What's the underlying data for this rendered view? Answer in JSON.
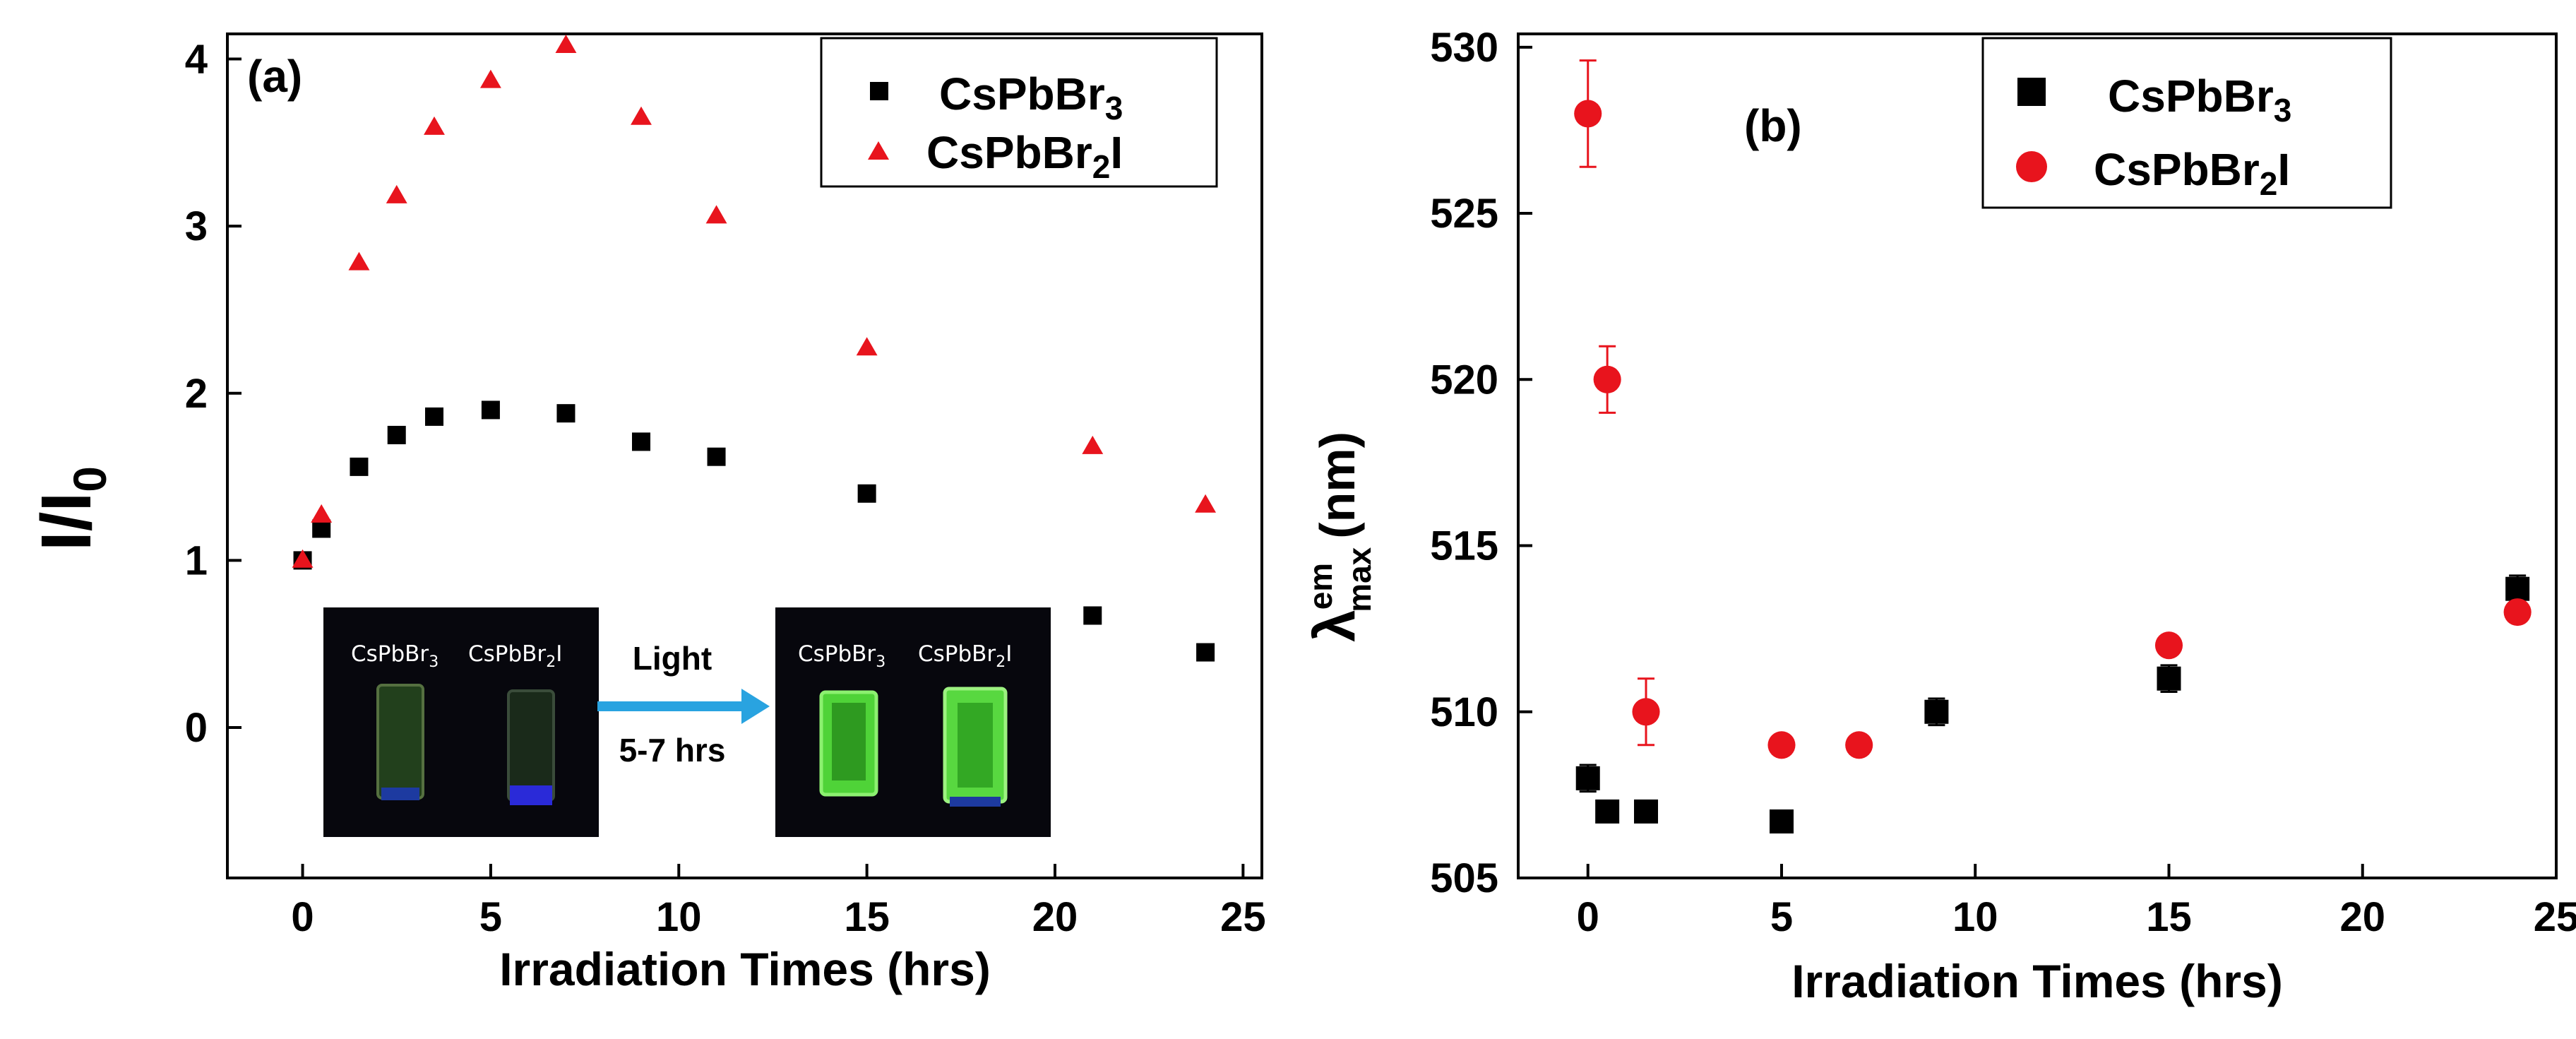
{
  "chart_data": [
    {
      "type": "scatter",
      "panel_label": "(a)",
      "xlabel": "Irradiation Times (hrs)",
      "ylabel": "I/I0",
      "ylabel_main": "I/I",
      "ylabel_sub": "0",
      "xlim": [
        -2,
        25.5
      ],
      "ylim": [
        -0.9,
        4.15
      ],
      "xticks": [
        0,
        5,
        10,
        15,
        20,
        25
      ],
      "yticks": [
        0,
        1,
        2,
        3,
        4
      ],
      "grid": false,
      "legend_position": "top-right",
      "series": [
        {
          "name": "CsPbBr3",
          "label_main": "CsPbBr",
          "label_sub": "3",
          "marker": "square",
          "color": "#000000",
          "x": [
            0,
            0.5,
            1.5,
            2.5,
            3.5,
            5,
            7,
            9,
            11,
            15,
            21,
            24
          ],
          "y": [
            1.0,
            1.19,
            1.56,
            1.75,
            1.86,
            1.9,
            1.88,
            1.71,
            1.62,
            1.4,
            0.67,
            0.45
          ]
        },
        {
          "name": "CsPbBr2I",
          "label_main": "CsPbBr",
          "label_sub": "2",
          "label_tail": "I",
          "marker": "triangle",
          "color": "#e8141d",
          "x": [
            0,
            0.5,
            1.5,
            2.5,
            3.5,
            5,
            7,
            9,
            11,
            15,
            21,
            24
          ],
          "y": [
            1.0,
            1.27,
            2.78,
            3.18,
            3.59,
            3.87,
            4.08,
            3.65,
            3.06,
            2.27,
            1.68,
            1.33
          ]
        }
      ],
      "inset": {
        "arrow_label_1": "Light",
        "arrow_label_2": "5-7 hrs",
        "before": {
          "label1_main": "CsPbBr",
          "label1_sub": "3",
          "label2_main": "CsPbBr",
          "label2_sub": "2",
          "label2_tail": "I"
        },
        "after": {
          "label1_main": "CsPbBr",
          "label1_sub": "3",
          "label2_main": "CsPbBr",
          "label2_sub": "2",
          "label2_tail": "I"
        }
      }
    },
    {
      "type": "scatter",
      "panel_label": "(b)",
      "xlabel": "Irradiation Times (hrs)",
      "ylabel": "λ max em (nm)",
      "ylabel_main": "λ",
      "ylabel_sup": "em",
      "ylabel_sub": "max",
      "ylabel_unit": "(nm)",
      "xlim": [
        -1.8,
        25
      ],
      "ylim": [
        505,
        530.4
      ],
      "xticks": [
        0,
        5,
        10,
        15,
        20,
        25
      ],
      "yticks": [
        505,
        510,
        515,
        520,
        525,
        530
      ],
      "grid": false,
      "legend_position": "top-right",
      "series": [
        {
          "name": "CsPbBr3",
          "label_main": "CsPbBr",
          "label_sub": "3",
          "marker": "square",
          "color": "#000000",
          "x": [
            0,
            0.5,
            1.5,
            5,
            9,
            15,
            24
          ],
          "y": [
            508,
            507,
            507,
            506.7,
            510,
            511,
            513.7
          ],
          "err": [
            0.4,
            0,
            0,
            0,
            0.4,
            0.4,
            0.4
          ]
        },
        {
          "name": "CsPbBr2I",
          "label_main": "CsPbBr",
          "label_sub": "2",
          "label_tail": "I",
          "marker": "circle",
          "color": "#e8141d",
          "x": [
            0,
            0.5,
            1.5,
            5,
            7,
            15,
            24
          ],
          "y": [
            528,
            520,
            510,
            509,
            509,
            512,
            513
          ],
          "err": [
            1.6,
            1.0,
            1.0,
            0,
            0,
            0,
            0
          ]
        }
      ]
    }
  ]
}
